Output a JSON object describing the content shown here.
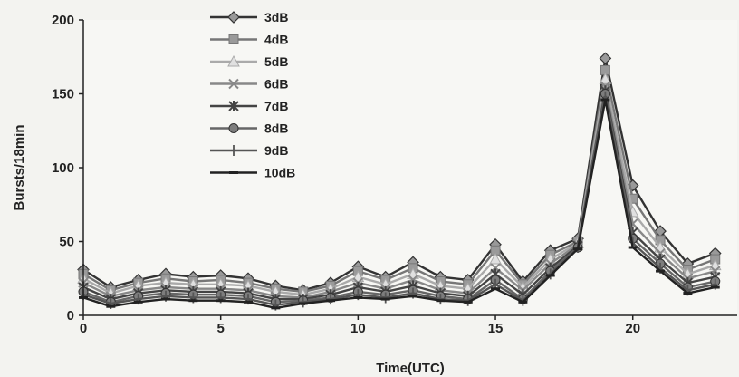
{
  "chart_data": {
    "type": "line",
    "title": "",
    "xlabel": "Time(UTC)",
    "ylabel": "Bursts/18min",
    "xlim": [
      0,
      23.8
    ],
    "ylim": [
      0,
      200
    ],
    "xticks": [
      0,
      5,
      10,
      15,
      20
    ],
    "yticks": [
      0,
      50,
      100,
      150,
      200
    ],
    "grid": false,
    "legend_position": "top-left",
    "x": [
      0,
      1,
      2,
      3,
      4,
      5,
      6,
      7,
      8,
      9,
      10,
      11,
      12,
      13,
      14,
      15,
      16,
      17,
      18,
      19,
      20,
      21,
      22,
      23
    ],
    "series": [
      {
        "name": "3dB",
        "marker": "diamond",
        "color": "#333333",
        "values": [
          31,
          19,
          24,
          28,
          26,
          27,
          25,
          20,
          17,
          22,
          33,
          26,
          36,
          26,
          24,
          48,
          23,
          44,
          52,
          174,
          88,
          57,
          35,
          42
        ]
      },
      {
        "name": "4dB",
        "marker": "square",
        "color": "#777777",
        "values": [
          28,
          17,
          22,
          25,
          23,
          24,
          22,
          18,
          16,
          20,
          30,
          24,
          32,
          23,
          21,
          44,
          21,
          41,
          50,
          166,
          79,
          51,
          31,
          38
        ]
      },
      {
        "name": "5dB",
        "marker": "triangle",
        "color": "#aaaaaa",
        "values": [
          25,
          15,
          20,
          22,
          21,
          21,
          20,
          16,
          14,
          18,
          26,
          21,
          28,
          20,
          18,
          38,
          19,
          38,
          49,
          160,
          70,
          46,
          28,
          34
        ]
      },
      {
        "name": "6dB",
        "marker": "x",
        "color": "#888888",
        "values": [
          22,
          13,
          17,
          19,
          18,
          18,
          17,
          13,
          12,
          16,
          22,
          18,
          24,
          17,
          15,
          32,
          17,
          35,
          48,
          155,
          62,
          42,
          25,
          30
        ]
      },
      {
        "name": "7dB",
        "marker": "star",
        "color": "#444444",
        "values": [
          19,
          11,
          15,
          17,
          16,
          16,
          15,
          11,
          11,
          14,
          19,
          16,
          20,
          15,
          13,
          28,
          14,
          32,
          47,
          152,
          56,
          38,
          22,
          26
        ]
      },
      {
        "name": "8dB",
        "marker": "circle",
        "color": "#666666",
        "values": [
          16,
          9,
          13,
          15,
          14,
          14,
          13,
          9,
          10,
          12,
          16,
          14,
          17,
          13,
          11,
          24,
          11,
          30,
          46,
          150,
          52,
          35,
          19,
          23
        ]
      },
      {
        "name": "9dB",
        "marker": "plus",
        "color": "#555555",
        "values": [
          14,
          8,
          11,
          13,
          12,
          12,
          11,
          7,
          9,
          11,
          14,
          12,
          15,
          11,
          10,
          21,
          10,
          28,
          46,
          148,
          49,
          32,
          17,
          21
        ]
      },
      {
        "name": "10dB",
        "marker": "dash",
        "color": "#222222",
        "values": [
          12,
          6,
          9,
          11,
          10,
          10,
          9,
          5,
          8,
          10,
          12,
          11,
          13,
          10,
          9,
          18,
          9,
          27,
          45,
          146,
          46,
          30,
          15,
          19
        ]
      }
    ]
  }
}
